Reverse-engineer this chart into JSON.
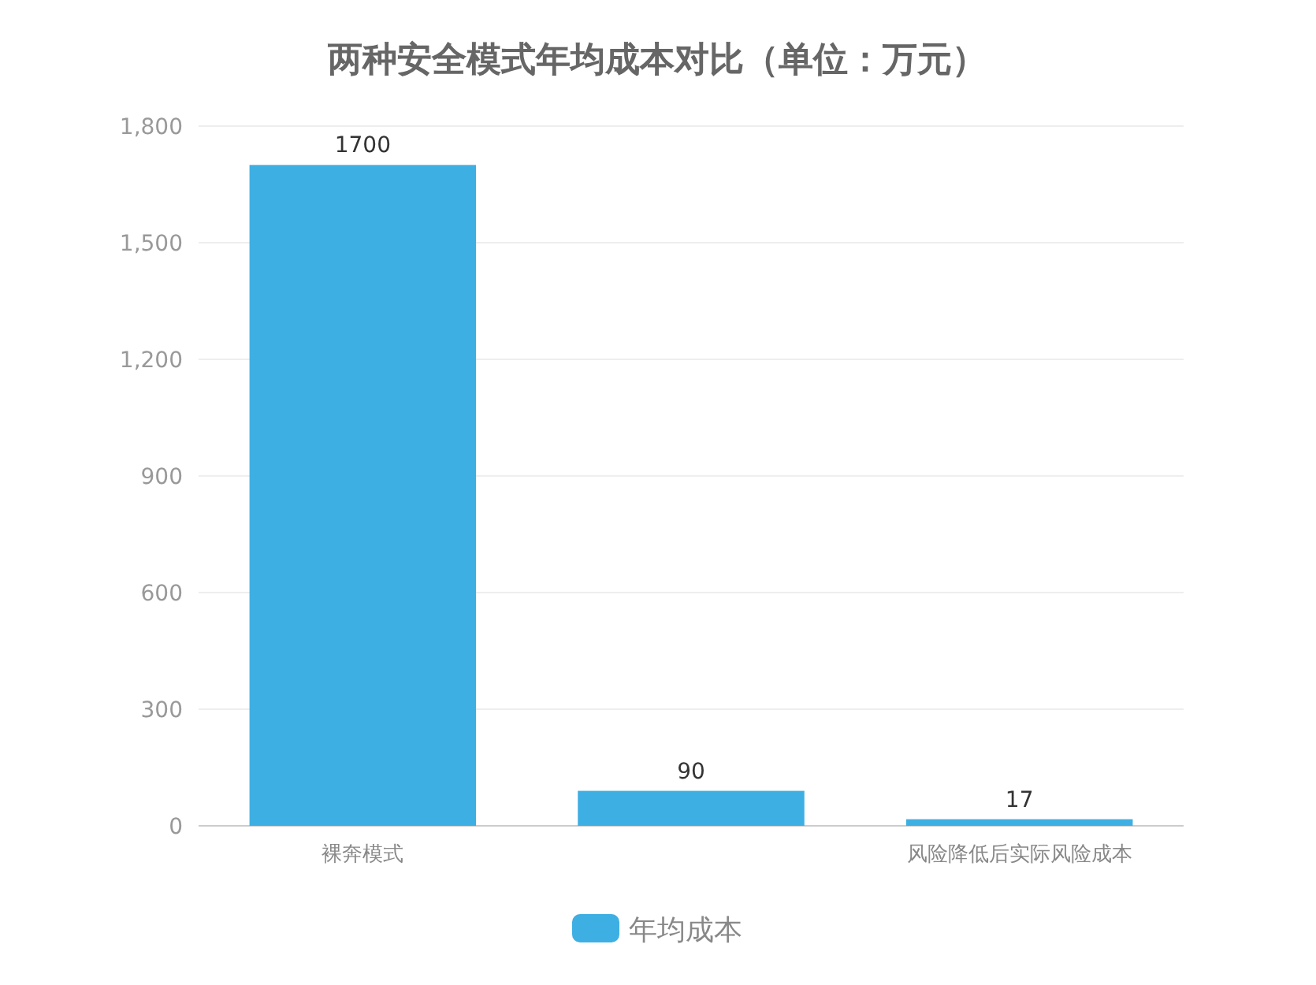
{
  "chart_data": {
    "type": "bar",
    "title": "两种安全模式年均成本对比（单位：万元）",
    "categories": [
      "裸奔模式",
      null,
      "风险降低后实际风险成本"
    ],
    "series": [
      {
        "name": "年均成本",
        "color": "#3eafe2",
        "values": [
          1700,
          90,
          17
        ]
      }
    ],
    "ylim": [
      0,
      1800
    ],
    "yticks": [
      0,
      300,
      600,
      900,
      {
        "value": 1200,
        "label": "1,200"
      },
      {
        "value": 1500,
        "label": "1,500"
      },
      {
        "value": 1800,
        "label": "1,800"
      }
    ],
    "data_labels": true,
    "legend": "bottom",
    "grid": "y"
  }
}
